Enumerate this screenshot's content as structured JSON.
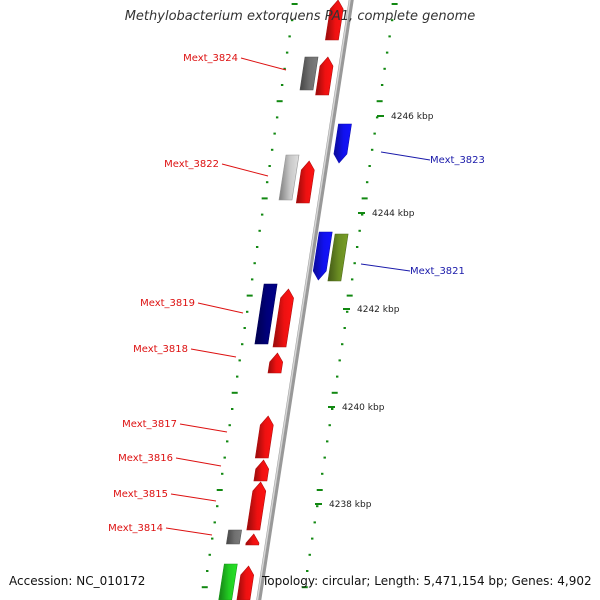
{
  "title": "Methylobacterium extorquens PA1, complete genome",
  "footer": {
    "accession": "Accession: NC_010172",
    "summary": "Topology: circular; Length: 5,471,154 bp; Genes: 4,902"
  },
  "colors": {
    "forward_label": "#dd1111",
    "reverse_label": "#1a1aaa",
    "tick": "#118811",
    "backbone": "#999999"
  },
  "scale_labels": [
    {
      "text": "4246 kbp"
    },
    {
      "text": "4244 kbp"
    },
    {
      "text": "4242 kbp"
    },
    {
      "text": "4240 kbp"
    },
    {
      "text": "4238 kbp"
    }
  ],
  "gene_labels": [
    {
      "text": "Mext_3824",
      "strand": "forward"
    },
    {
      "text": "Mext_3823",
      "strand": "reverse"
    },
    {
      "text": "Mext_3822",
      "strand": "forward"
    },
    {
      "text": "Mext_3821",
      "strand": "reverse"
    },
    {
      "text": "Mext_3819",
      "strand": "forward"
    },
    {
      "text": "Mext_3818",
      "strand": "forward"
    },
    {
      "text": "Mext_3817",
      "strand": "forward"
    },
    {
      "text": "Mext_3816",
      "strand": "forward"
    },
    {
      "text": "Mext_3815",
      "strand": "forward"
    },
    {
      "text": "Mext_3814",
      "strand": "forward"
    }
  ],
  "genes": [
    {
      "strand": "forward",
      "color": "#ee1111",
      "shape": "arrow"
    },
    {
      "strand": "forward",
      "color": "#ee1111",
      "shape": "arrow"
    },
    {
      "strand": "forward",
      "color": "#707070",
      "shape": "box"
    },
    {
      "strand": "reverse",
      "color": "#1111ee",
      "shape": "arrow"
    },
    {
      "strand": "forward",
      "color": "#ee1111",
      "shape": "arrow"
    },
    {
      "strand": "forward",
      "color": "#c8c8c8",
      "shape": "box"
    },
    {
      "strand": "reverse",
      "color": "#1111ee",
      "shape": "arrow"
    },
    {
      "strand": "reverse",
      "color": "#6b8e23",
      "shape": "box"
    },
    {
      "strand": "forward",
      "color": "#ee1111",
      "shape": "arrow"
    },
    {
      "strand": "forward",
      "color": "#00007a",
      "shape": "box"
    },
    {
      "strand": "forward",
      "color": "#ee1111",
      "shape": "arrow"
    },
    {
      "strand": "forward",
      "color": "#ee1111",
      "shape": "arrow"
    },
    {
      "strand": "forward",
      "color": "#ee1111",
      "shape": "arrow"
    },
    {
      "strand": "forward",
      "color": "#ee1111",
      "shape": "arrow"
    },
    {
      "strand": "forward",
      "color": "#707070",
      "shape": "box"
    },
    {
      "strand": "forward",
      "color": "#ee1111",
      "shape": "arrow"
    },
    {
      "strand": "forward",
      "color": "#ee1111",
      "shape": "arrow"
    },
    {
      "strand": "forward",
      "color": "#22cc22",
      "shape": "box"
    }
  ]
}
